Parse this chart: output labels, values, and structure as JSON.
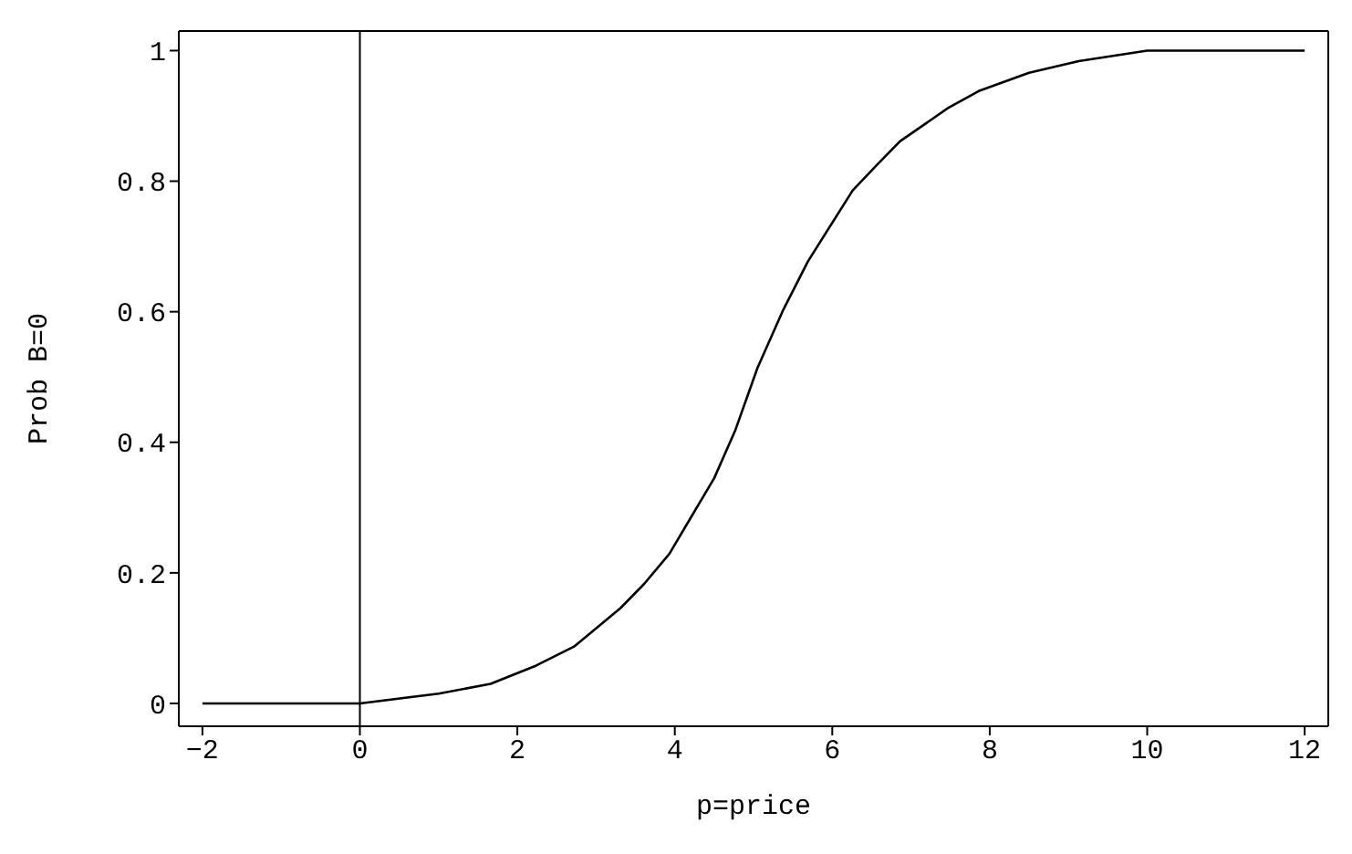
{
  "chart_data": {
    "type": "line",
    "xlabel": "p=price",
    "ylabel": "Prob B=0",
    "x": [
      -2,
      0,
      1,
      1.66,
      2.24,
      2.72,
      3.31,
      3.61,
      3.93,
      4.5,
      4.77,
      5.05,
      5.37,
      5.69,
      6.26,
      6.56,
      6.86,
      7.47,
      7.86,
      8.5,
      9.13,
      10,
      12
    ],
    "series": [
      {
        "color": "#000000",
        "values": [
          0,
          0,
          0.015,
          0.03,
          0.058,
          0.087,
          0.146,
          0.183,
          0.229,
          0.345,
          0.419,
          0.514,
          0.601,
          0.677,
          0.786,
          0.824,
          0.861,
          0.912,
          0.938,
          0.966,
          0.984,
          1,
          1
        ]
      }
    ],
    "xlim": [
      -2.3,
      12.3
    ],
    "ylim": [
      -0.035,
      1.03
    ],
    "xticks": [
      -2,
      0,
      2,
      4,
      6,
      8,
      10,
      12
    ],
    "yticks": [
      0,
      0.2,
      0.4,
      0.6,
      0.8,
      1
    ],
    "ref_lines": [
      {
        "axis": "x",
        "value": 0,
        "color": "#000000"
      }
    ],
    "grid": false,
    "legend": false,
    "marker": "none",
    "line_style": "solid"
  }
}
